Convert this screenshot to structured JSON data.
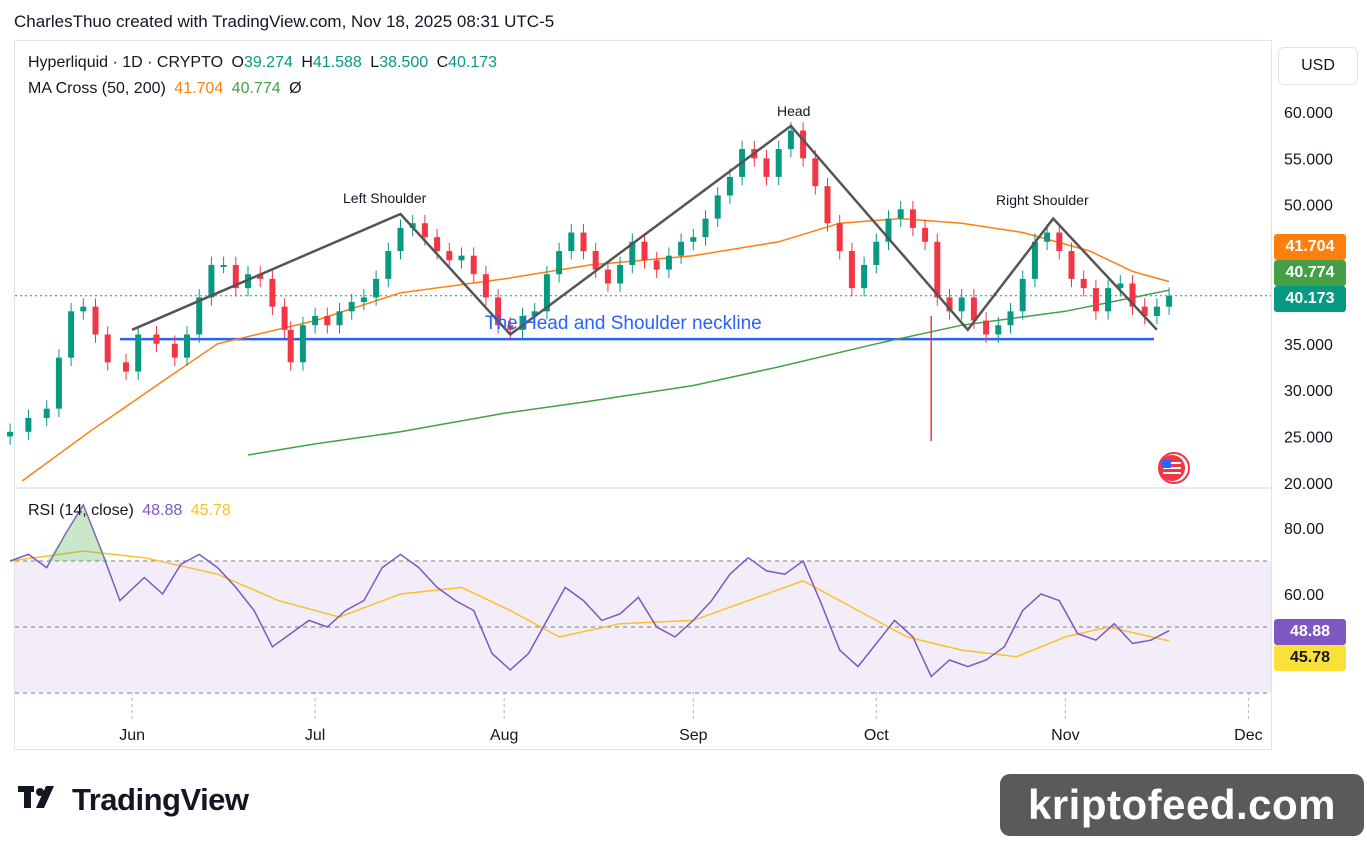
{
  "header": {
    "credit": "CharlesThuo created with TradingView.com, Nov 18, 2025 08:31 UTC-5"
  },
  "legend": {
    "symbol": "Hyperliquid · 1D · CRYPTO",
    "o_label": "O",
    "o_value": "39.274",
    "h_label": "H",
    "h_value": "41.588",
    "l_label": "L",
    "l_value": "38.500",
    "c_label": "C",
    "c_value": "40.173",
    "ma_name": "MA Cross (50, 200)",
    "ma_fast": "41.704",
    "ma_slow": "40.774",
    "ma_extra": "Ø",
    "rsi_name": "RSI (14, close)",
    "rsi_value": "48.88",
    "rsi_ma": "45.78"
  },
  "currency_button": "USD",
  "price_tags": {
    "ma_fast": "41.704",
    "ma_slow": "40.774",
    "close": "40.173",
    "rsi": "48.88",
    "rsi_ma": "45.78"
  },
  "colors": {
    "up": "#089981",
    "down": "#f23645",
    "ma50": "#ff7f0e",
    "ma200": "#43a047",
    "rsi": "#7e57c2",
    "rsi_ma": "#fbc02d",
    "neckline": "#2962ff",
    "pattern": "#555555"
  },
  "branding": {
    "tradingview": "TradingView",
    "watermark": "kriptofeed.com"
  },
  "annotations": {
    "left_shoulder": "Left Shoulder",
    "head": "Head",
    "right_shoulder": "Right Shoulder",
    "neckline": "The Head and Shoulder neckline"
  },
  "chart_data": {
    "type": "candlestick",
    "title": "Hyperliquid · 1D · CRYPTO",
    "x_ticks": [
      "Jun",
      "Jul",
      "Aug",
      "Sep",
      "Oct",
      "Nov",
      "Dec"
    ],
    "price_ticks": [
      "60.000",
      "55.000",
      "50.000",
      "35.000",
      "30.000",
      "25.000",
      "20.000"
    ],
    "price_range": [
      20,
      61
    ],
    "rsi_ticks": [
      "80.00",
      "60.00"
    ],
    "rsi_range": [
      30,
      90
    ],
    "rsi_bands": [
      70,
      30
    ],
    "neckline": 35.5,
    "close_series": [
      [
        "2025-05-12",
        25.5
      ],
      [
        "2025-05-15",
        27.0
      ],
      [
        "2025-05-18",
        28.0
      ],
      [
        "2025-05-20",
        33.5
      ],
      [
        "2025-05-22",
        38.5
      ],
      [
        "2025-05-24",
        39.0
      ],
      [
        "2025-05-26",
        36.0
      ],
      [
        "2025-05-28",
        33.0
      ],
      [
        "2025-05-31",
        32.0
      ],
      [
        "2025-06-02",
        36.0
      ],
      [
        "2025-06-05",
        35.0
      ],
      [
        "2025-06-08",
        33.5
      ],
      [
        "2025-06-10",
        36.0
      ],
      [
        "2025-06-12",
        40.0
      ],
      [
        "2025-06-14",
        43.5
      ],
      [
        "2025-06-16",
        43.5
      ],
      [
        "2025-06-18",
        41.0
      ],
      [
        "2025-06-20",
        42.5
      ],
      [
        "2025-06-22",
        42.0
      ],
      [
        "2025-06-24",
        39.0
      ],
      [
        "2025-06-26",
        36.5
      ],
      [
        "2025-06-27",
        33.0
      ],
      [
        "2025-06-29",
        37.0
      ],
      [
        "2025-07-01",
        38.0
      ],
      [
        "2025-07-03",
        37.0
      ],
      [
        "2025-07-05",
        38.5
      ],
      [
        "2025-07-07",
        39.5
      ],
      [
        "2025-07-09",
        40.0
      ],
      [
        "2025-07-11",
        42.0
      ],
      [
        "2025-07-13",
        45.0
      ],
      [
        "2025-07-15",
        47.5
      ],
      [
        "2025-07-17",
        48.0
      ],
      [
        "2025-07-19",
        46.5
      ],
      [
        "2025-07-21",
        45.0
      ],
      [
        "2025-07-23",
        44.0
      ],
      [
        "2025-07-25",
        44.5
      ],
      [
        "2025-07-27",
        42.5
      ],
      [
        "2025-07-29",
        40.0
      ],
      [
        "2025-07-31",
        37.0
      ],
      [
        "2025-08-02",
        36.5
      ],
      [
        "2025-08-04",
        38.0
      ],
      [
        "2025-08-06",
        38.5
      ],
      [
        "2025-08-08",
        42.5
      ],
      [
        "2025-08-10",
        45.0
      ],
      [
        "2025-08-12",
        47.0
      ],
      [
        "2025-08-14",
        45.0
      ],
      [
        "2025-08-16",
        43.0
      ],
      [
        "2025-08-18",
        41.5
      ],
      [
        "2025-08-20",
        43.5
      ],
      [
        "2025-08-22",
        46.0
      ],
      [
        "2025-08-24",
        44.0
      ],
      [
        "2025-08-26",
        43.0
      ],
      [
        "2025-08-28",
        44.5
      ],
      [
        "2025-08-30",
        46.0
      ],
      [
        "2025-09-01",
        46.5
      ],
      [
        "2025-09-03",
        48.5
      ],
      [
        "2025-09-05",
        51.0
      ],
      [
        "2025-09-07",
        53.0
      ],
      [
        "2025-09-09",
        56.0
      ],
      [
        "2025-09-11",
        55.0
      ],
      [
        "2025-09-13",
        53.0
      ],
      [
        "2025-09-15",
        56.0
      ],
      [
        "2025-09-17",
        58.0
      ],
      [
        "2025-09-19",
        55.0
      ],
      [
        "2025-09-21",
        52.0
      ],
      [
        "2025-09-23",
        48.0
      ],
      [
        "2025-09-25",
        45.0
      ],
      [
        "2025-09-27",
        41.0
      ],
      [
        "2025-09-29",
        43.5
      ],
      [
        "2025-10-01",
        46.0
      ],
      [
        "2025-10-03",
        48.5
      ],
      [
        "2025-10-05",
        49.5
      ],
      [
        "2025-10-07",
        47.5
      ],
      [
        "2025-10-09",
        46.0
      ],
      [
        "2025-10-11",
        40.0
      ],
      [
        "2025-10-13",
        38.5
      ],
      [
        "2025-10-15",
        40.0
      ],
      [
        "2025-10-17",
        37.5
      ],
      [
        "2025-10-19",
        36.0
      ],
      [
        "2025-10-21",
        37.0
      ],
      [
        "2025-10-23",
        38.5
      ],
      [
        "2025-10-25",
        42.0
      ],
      [
        "2025-10-27",
        46.0
      ],
      [
        "2025-10-29",
        47.0
      ],
      [
        "2025-10-31",
        45.0
      ],
      [
        "2025-11-02",
        42.0
      ],
      [
        "2025-11-04",
        41.0
      ],
      [
        "2025-11-06",
        38.5
      ],
      [
        "2025-11-08",
        41.0
      ],
      [
        "2025-11-10",
        41.5
      ],
      [
        "2025-11-12",
        39.0
      ],
      [
        "2025-11-14",
        38.0
      ],
      [
        "2025-11-16",
        39.0
      ],
      [
        "2025-11-18",
        40.173
      ]
    ],
    "ma50_series": [
      [
        "2025-05-14",
        20.2
      ],
      [
        "2025-05-25",
        25.5
      ],
      [
        "2025-06-05",
        30.5
      ],
      [
        "2025-06-15",
        35.0
      ],
      [
        "2025-07-01",
        37.5
      ],
      [
        "2025-07-15",
        40.5
      ],
      [
        "2025-08-01",
        42.0
      ],
      [
        "2025-08-15",
        43.5
      ],
      [
        "2025-09-01",
        44.5
      ],
      [
        "2025-09-15",
        46.0
      ],
      [
        "2025-09-25",
        48.0
      ],
      [
        "2025-10-05",
        48.5
      ],
      [
        "2025-10-15",
        48.0
      ],
      [
        "2025-10-25",
        47.0
      ],
      [
        "2025-11-05",
        45.0
      ],
      [
        "2025-11-12",
        42.8
      ],
      [
        "2025-11-18",
        41.704
      ]
    ],
    "ma200_series": [
      [
        "2025-06-20",
        23.0
      ],
      [
        "2025-07-01",
        24.2
      ],
      [
        "2025-07-15",
        25.5
      ],
      [
        "2025-08-01",
        27.5
      ],
      [
        "2025-08-15",
        28.8
      ],
      [
        "2025-09-01",
        30.5
      ],
      [
        "2025-09-15",
        32.5
      ],
      [
        "2025-10-01",
        35.0
      ],
      [
        "2025-10-15",
        37.0
      ],
      [
        "2025-11-01",
        38.5
      ],
      [
        "2025-11-18",
        40.774
      ]
    ],
    "rsi_series": [
      [
        "2025-05-12",
        70
      ],
      [
        "2025-05-15",
        72
      ],
      [
        "2025-05-18",
        68
      ],
      [
        "2025-05-21",
        78
      ],
      [
        "2025-05-24",
        87
      ],
      [
        "2025-05-27",
        73
      ],
      [
        "2025-05-30",
        58
      ],
      [
        "2025-06-03",
        65
      ],
      [
        "2025-06-06",
        60
      ],
      [
        "2025-06-09",
        69
      ],
      [
        "2025-06-12",
        72
      ],
      [
        "2025-06-15",
        68
      ],
      [
        "2025-06-18",
        62
      ],
      [
        "2025-06-21",
        55
      ],
      [
        "2025-06-24",
        44
      ],
      [
        "2025-06-27",
        48
      ],
      [
        "2025-06-30",
        52
      ],
      [
        "2025-07-03",
        50
      ],
      [
        "2025-07-06",
        55
      ],
      [
        "2025-07-09",
        58
      ],
      [
        "2025-07-12",
        68
      ],
      [
        "2025-07-15",
        72
      ],
      [
        "2025-07-18",
        68
      ],
      [
        "2025-07-21",
        62
      ],
      [
        "2025-07-24",
        58
      ],
      [
        "2025-07-27",
        55
      ],
      [
        "2025-07-30",
        42
      ],
      [
        "2025-08-02",
        37
      ],
      [
        "2025-08-05",
        42
      ],
      [
        "2025-08-08",
        52
      ],
      [
        "2025-08-11",
        62
      ],
      [
        "2025-08-14",
        58
      ],
      [
        "2025-08-17",
        52
      ],
      [
        "2025-08-20",
        54
      ],
      [
        "2025-08-23",
        59
      ],
      [
        "2025-08-26",
        50
      ],
      [
        "2025-08-29",
        47
      ],
      [
        "2025-09-01",
        52
      ],
      [
        "2025-09-04",
        58
      ],
      [
        "2025-09-07",
        66
      ],
      [
        "2025-09-10",
        71
      ],
      [
        "2025-09-13",
        67
      ],
      [
        "2025-09-16",
        66
      ],
      [
        "2025-09-19",
        70
      ],
      [
        "2025-09-22",
        57
      ],
      [
        "2025-09-25",
        43
      ],
      [
        "2025-09-28",
        38
      ],
      [
        "2025-10-01",
        45
      ],
      [
        "2025-10-04",
        52
      ],
      [
        "2025-10-07",
        47
      ],
      [
        "2025-10-10",
        35
      ],
      [
        "2025-10-13",
        40
      ],
      [
        "2025-10-16",
        38
      ],
      [
        "2025-10-19",
        40
      ],
      [
        "2025-10-22",
        44
      ],
      [
        "2025-10-25",
        55
      ],
      [
        "2025-10-28",
        60
      ],
      [
        "2025-10-31",
        58
      ],
      [
        "2025-11-03",
        48
      ],
      [
        "2025-11-06",
        46
      ],
      [
        "2025-11-09",
        51
      ],
      [
        "2025-11-12",
        45
      ],
      [
        "2025-11-15",
        46
      ],
      [
        "2025-11-18",
        48.88
      ]
    ],
    "rsi_ma_series": [
      [
        "2025-05-12",
        70
      ],
      [
        "2025-05-24",
        73
      ],
      [
        "2025-06-03",
        71
      ],
      [
        "2025-06-15",
        66
      ],
      [
        "2025-06-25",
        58
      ],
      [
        "2025-07-05",
        53
      ],
      [
        "2025-07-15",
        60
      ],
      [
        "2025-07-25",
        62
      ],
      [
        "2025-08-02",
        55
      ],
      [
        "2025-08-10",
        47
      ],
      [
        "2025-08-20",
        51
      ],
      [
        "2025-09-01",
        52
      ],
      [
        "2025-09-10",
        58
      ],
      [
        "2025-09-19",
        64
      ],
      [
        "2025-09-28",
        55
      ],
      [
        "2025-10-06",
        47
      ],
      [
        "2025-10-15",
        43
      ],
      [
        "2025-10-24",
        41
      ],
      [
        "2025-11-01",
        47
      ],
      [
        "2025-11-08",
        50
      ],
      [
        "2025-11-18",
        45.78
      ]
    ]
  }
}
